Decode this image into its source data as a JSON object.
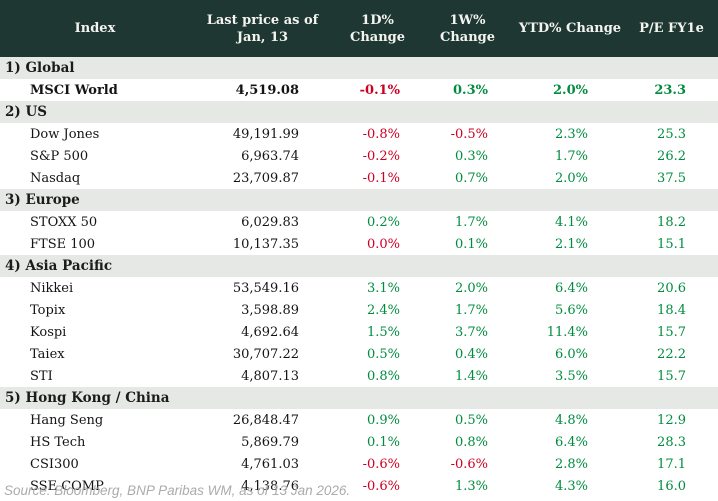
{
  "chart_data": {
    "type": "table",
    "columns": [
      "Index",
      "Last price as of\nJan, 13",
      "1D% Change",
      "1W% Change",
      "YTD% Change",
      "P/E FY1e"
    ],
    "sections": [
      {
        "label": "1) Global",
        "rows": [
          {
            "name": "MSCI World",
            "bold": true,
            "price": "4,519.08",
            "changes": [
              {
                "v": "-0.1%",
                "c": "down"
              },
              {
                "v": "0.3%",
                "c": "up"
              },
              {
                "v": "2.0%",
                "c": "up"
              }
            ],
            "pe": "23.3"
          }
        ]
      },
      {
        "label": "2) US",
        "rows": [
          {
            "name": "Dow Jones",
            "bold": false,
            "price": "49,191.99",
            "changes": [
              {
                "v": "-0.8%",
                "c": "down"
              },
              {
                "v": "-0.5%",
                "c": "down"
              },
              {
                "v": "2.3%",
                "c": "up"
              }
            ],
            "pe": "25.3"
          },
          {
            "name": "S&P 500",
            "bold": false,
            "price": "6,963.74",
            "changes": [
              {
                "v": "-0.2%",
                "c": "down"
              },
              {
                "v": "0.3%",
                "c": "up"
              },
              {
                "v": "1.7%",
                "c": "up"
              }
            ],
            "pe": "26.2"
          },
          {
            "name": "Nasdaq",
            "bold": false,
            "price": "23,709.87",
            "changes": [
              {
                "v": "-0.1%",
                "c": "down"
              },
              {
                "v": "0.7%",
                "c": "up"
              },
              {
                "v": "2.0%",
                "c": "up"
              }
            ],
            "pe": "37.5"
          }
        ]
      },
      {
        "label": "3) Europe",
        "rows": [
          {
            "name": "STOXX 50",
            "bold": false,
            "price": "6,029.83",
            "changes": [
              {
                "v": "0.2%",
                "c": "up"
              },
              {
                "v": "1.7%",
                "c": "up"
              },
              {
                "v": "4.1%",
                "c": "up"
              }
            ],
            "pe": "18.2"
          },
          {
            "name": "FTSE 100",
            "bold": false,
            "price": "10,137.35",
            "changes": [
              {
                "v": "0.0%",
                "c": "down"
              },
              {
                "v": "0.1%",
                "c": "up"
              },
              {
                "v": "2.1%",
                "c": "up"
              }
            ],
            "pe": "15.1"
          }
        ]
      },
      {
        "label": "4) Asia Pacific",
        "rows": [
          {
            "name": "Nikkei",
            "bold": false,
            "price": "53,549.16",
            "changes": [
              {
                "v": "3.1%",
                "c": "up"
              },
              {
                "v": "2.0%",
                "c": "up"
              },
              {
                "v": "6.4%",
                "c": "up"
              }
            ],
            "pe": "20.6"
          },
          {
            "name": "Topix",
            "bold": false,
            "price": "3,598.89",
            "changes": [
              {
                "v": "2.4%",
                "c": "up"
              },
              {
                "v": "1.7%",
                "c": "up"
              },
              {
                "v": "5.6%",
                "c": "up"
              }
            ],
            "pe": "18.4"
          },
          {
            "name": "Kospi",
            "bold": false,
            "price": "4,692.64",
            "changes": [
              {
                "v": "1.5%",
                "c": "up"
              },
              {
                "v": "3.7%",
                "c": "up"
              },
              {
                "v": "11.4%",
                "c": "up"
              }
            ],
            "pe": "15.7"
          },
          {
            "name": "Taiex",
            "bold": false,
            "price": "30,707.22",
            "changes": [
              {
                "v": "0.5%",
                "c": "up"
              },
              {
                "v": "0.4%",
                "c": "up"
              },
              {
                "v": "6.0%",
                "c": "up"
              }
            ],
            "pe": "22.2"
          },
          {
            "name": "STI",
            "bold": false,
            "price": "4,807.13",
            "changes": [
              {
                "v": "0.8%",
                "c": "up"
              },
              {
                "v": "1.4%",
                "c": "up"
              },
              {
                "v": "3.5%",
                "c": "up"
              }
            ],
            "pe": "15.7"
          }
        ]
      },
      {
        "label": "5) Hong Kong / China",
        "rows": [
          {
            "name": "Hang Seng",
            "bold": false,
            "price": "26,848.47",
            "changes": [
              {
                "v": "0.9%",
                "c": "up"
              },
              {
                "v": "0.5%",
                "c": "up"
              },
              {
                "v": "4.8%",
                "c": "up"
              }
            ],
            "pe": "12.9"
          },
          {
            "name": "HS Tech",
            "bold": false,
            "price": "5,869.79",
            "changes": [
              {
                "v": "0.1%",
                "c": "up"
              },
              {
                "v": "0.8%",
                "c": "up"
              },
              {
                "v": "6.4%",
                "c": "up"
              }
            ],
            "pe": "28.3"
          },
          {
            "name": "CSI300",
            "bold": false,
            "price": "4,761.03",
            "changes": [
              {
                "v": "-0.6%",
                "c": "down"
              },
              {
                "v": "-0.6%",
                "c": "down"
              },
              {
                "v": "2.8%",
                "c": "up"
              }
            ],
            "pe": "17.1"
          },
          {
            "name": "SSE COMP",
            "bold": false,
            "price": "4,138.76",
            "changes": [
              {
                "v": "-0.6%",
                "c": "down"
              },
              {
                "v": "1.3%",
                "c": "up"
              },
              {
                "v": "4.3%",
                "c": "up"
              }
            ],
            "pe": "16.0"
          }
        ]
      }
    ],
    "pe_color": "up",
    "layout": {
      "grid": false,
      "section_rows_shaded": true,
      "numeric_alignment": "right"
    },
    "source_note": "Source: Bloomberg, BNP Paribas WM, as of 13 Jan 2026."
  },
  "colors": {
    "header_bg": "#1f3732",
    "header_fg": "#f3f4ef",
    "section_bg": "#e5e8e4",
    "positive_green": "#008c3e",
    "negative_red": "#cc0022",
    "source_gray": "#a9abad"
  }
}
